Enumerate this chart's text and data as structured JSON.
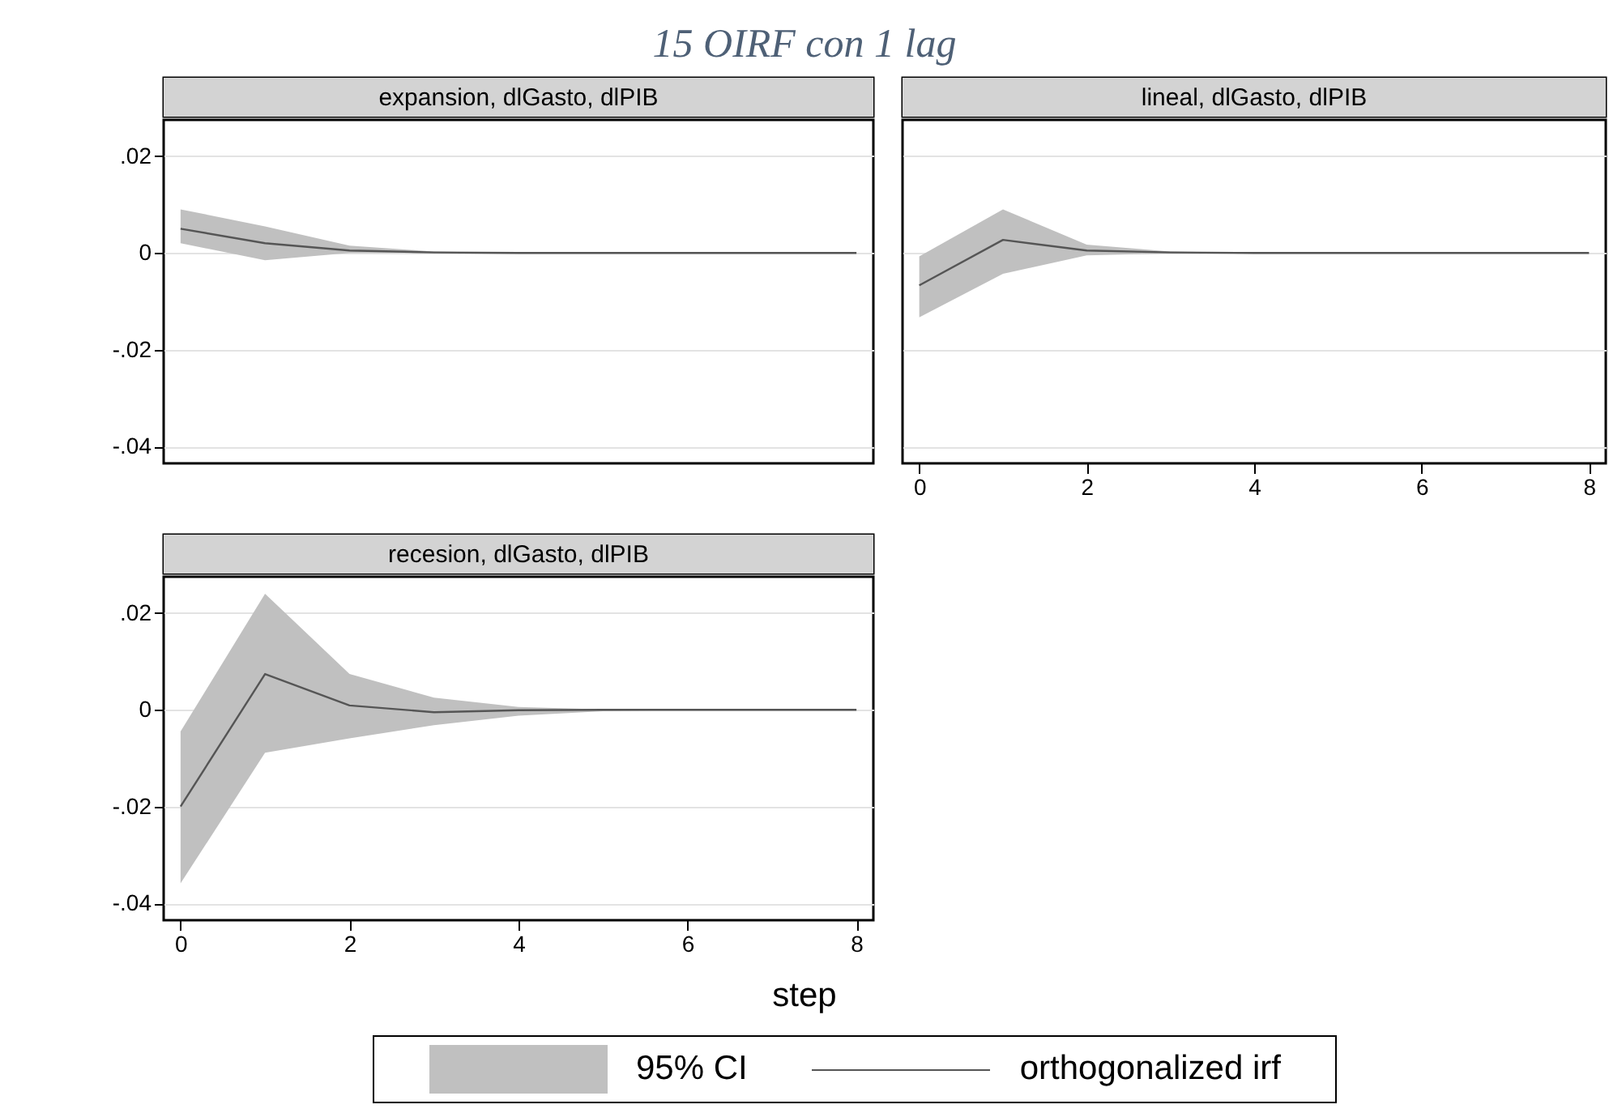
{
  "chart_data": [
    {
      "type": "line",
      "title": "expansion, dlGasto, dlPIB",
      "x": [
        0,
        1,
        2,
        3,
        4,
        5,
        6,
        7,
        8
      ],
      "xlim": [
        -0.2,
        8.2
      ],
      "ylim": [
        -0.0435,
        0.0275
      ],
      "yticks": [
        {
          "value": 0.02,
          "label": ".02"
        },
        0,
        {
          "value": -0.02,
          "label": "-.02"
        },
        {
          "value": -0.04,
          "label": "-.04"
        }
      ],
      "grid": "y",
      "tick_labels": "y",
      "series": [
        {
          "color": "#555555",
          "values": [
            0.005,
            0.002,
            0.0005,
            0.0001,
            0,
            0,
            0,
            0,
            0
          ],
          "lower": [
            0.002,
            -0.0015,
            0,
            0,
            0,
            0,
            0,
            0,
            0
          ],
          "upper": [
            0.009,
            0.0055,
            0.0015,
            0.0003,
            0,
            0,
            0,
            0,
            0
          ]
        }
      ]
    },
    {
      "type": "line",
      "title": "lineal, dlGasto, dlPIB",
      "x": [
        0,
        1,
        2,
        3,
        4,
        5,
        6,
        7,
        8
      ],
      "xlim": [
        -0.2,
        8.2
      ],
      "xticks": [
        0,
        2,
        4,
        6,
        8
      ],
      "ylim": [
        -0.0435,
        0.0275
      ],
      "yticks": [
        0.02,
        0,
        -0.02,
        -0.04
      ],
      "grid": "y",
      "tick_labels": "x",
      "series": [
        {
          "color": "#555555",
          "values": [
            -0.0067,
            0.0027,
            0.0005,
            0.0001,
            0,
            0,
            0,
            0,
            0
          ],
          "lower": [
            -0.0133,
            -0.0043,
            -0.0005,
            -0.0001,
            0,
            0,
            0,
            0,
            0
          ],
          "upper": [
            -0.0007,
            0.009,
            0.0017,
            0.0003,
            0,
            0,
            0,
            0,
            0
          ]
        }
      ]
    },
    {
      "type": "line",
      "title": "recesion, dlGasto, dlPIB",
      "xlabel": "step",
      "x": [
        0,
        1,
        2,
        3,
        4,
        5,
        6,
        7,
        8
      ],
      "xlim": [
        -0.2,
        8.2
      ],
      "xticks": [
        0,
        2,
        4,
        6,
        8
      ],
      "ylim": [
        -0.0435,
        0.0275
      ],
      "yticks": [
        {
          "value": 0.02,
          "label": ".02"
        },
        0,
        {
          "value": -0.02,
          "label": "-.02"
        },
        {
          "value": -0.04,
          "label": "-.04"
        }
      ],
      "grid": "y",
      "legend": "bottom",
      "annotations": [
        "15 OIRF con 1 lag",
        "95% CI"
      ],
      "series": [
        {
          "name": "orthogonalized irf",
          "color": "#555555",
          "values": [
            -0.02,
            0.0074,
            0.0009,
            -0.0005,
            -0.0001,
            0,
            0,
            0,
            0
          ],
          "lower": [
            -0.0359,
            -0.0089,
            -0.0059,
            -0.0032,
            -0.0012,
            -0.0003,
            0,
            0,
            0
          ],
          "upper": [
            -0.0045,
            0.024,
            0.0074,
            0.0025,
            0.0006,
            0.0001,
            0,
            0,
            0
          ]
        }
      ]
    }
  ]
}
